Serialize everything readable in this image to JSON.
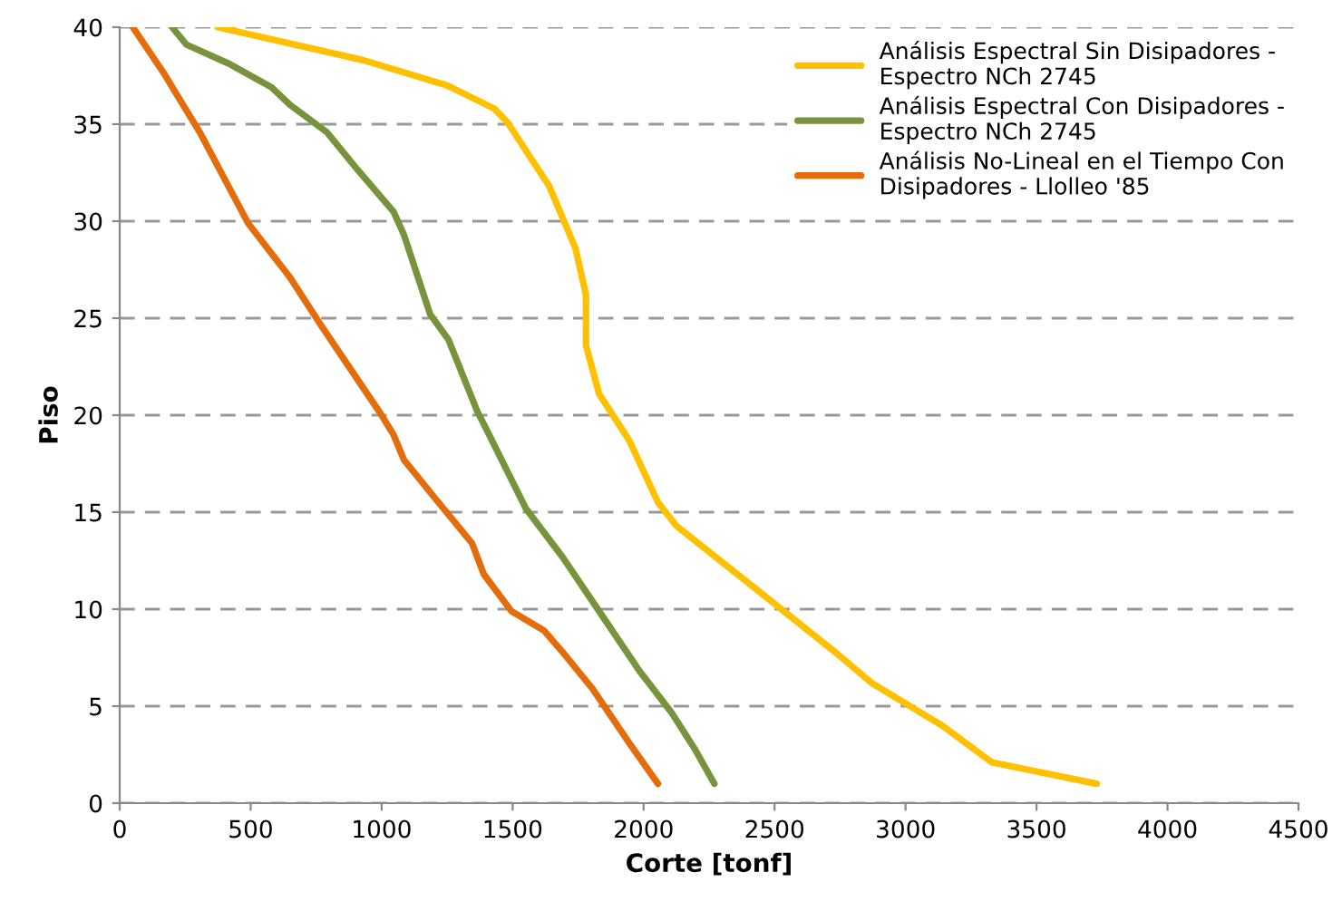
{
  "chart_data": {
    "type": "line",
    "xlabel": "Corte [tonf]",
    "ylabel": "Piso",
    "xlim": [
      0,
      4500
    ],
    "xticks": [
      0,
      500,
      1000,
      1500,
      2000,
      2500,
      3000,
      3500,
      4000,
      4500
    ],
    "ylim": [
      0,
      40
    ],
    "yticks": [
      0,
      5,
      10,
      15,
      20,
      25,
      30,
      35,
      40
    ],
    "grid": "y",
    "legend": "top right",
    "marker": "none",
    "line_style": "solid",
    "series": [
      {
        "name": "Análisis Espectral Sin Disipadores -\nEspectro NCh 2745",
        "color": "#ffc000",
        "x": [
          3730,
          3330,
          3140,
          2870,
          2730,
          2470,
          2125,
          2055,
          1945,
          1830,
          1780,
          1780,
          1740,
          1640,
          1480,
          1430,
          1250,
          930,
          375
        ],
        "values": [
          1,
          2.1,
          4,
          6.2,
          7.8,
          10.6,
          14.3,
          15.5,
          18.7,
          21.1,
          23.6,
          26.2,
          28.6,
          31.8,
          35.1,
          35.8,
          37,
          38.3,
          40
        ]
      },
      {
        "name": "Análisis Espectral Con Disipadores -\nEspectro NCh 2745",
        "color": "#77933c",
        "x": [
          2270,
          2195,
          2105,
          1985,
          1830,
          1690,
          1550,
          1410,
          1365,
          1255,
          1185,
          1085,
          1045,
          905,
          790,
          650,
          580,
          420,
          255,
          200
        ],
        "values": [
          1,
          2.8,
          4.7,
          6.8,
          9.9,
          12.7,
          15.2,
          19,
          20.2,
          23.9,
          25.2,
          29.3,
          30.5,
          32.7,
          34.6,
          36,
          36.9,
          38.1,
          39.1,
          40
        ]
      },
      {
        "name": "Análisis No-Lineal en el Tiempo Con\nDisipadores - Llolleo '85",
        "color": "#e46c0a",
        "x": [
          2055,
          1945,
          1805,
          1690,
          1620,
          1495,
          1390,
          1345,
          1205,
          1085,
          1045,
          995,
          880,
          770,
          650,
          490,
          305,
          165,
          50
        ],
        "values": [
          1,
          3.1,
          5.9,
          7.8,
          8.9,
          9.9,
          11.8,
          13.4,
          15.7,
          17.7,
          19,
          20.1,
          22.4,
          24.6,
          27.1,
          29.9,
          34.6,
          37.7,
          40
        ]
      }
    ]
  }
}
